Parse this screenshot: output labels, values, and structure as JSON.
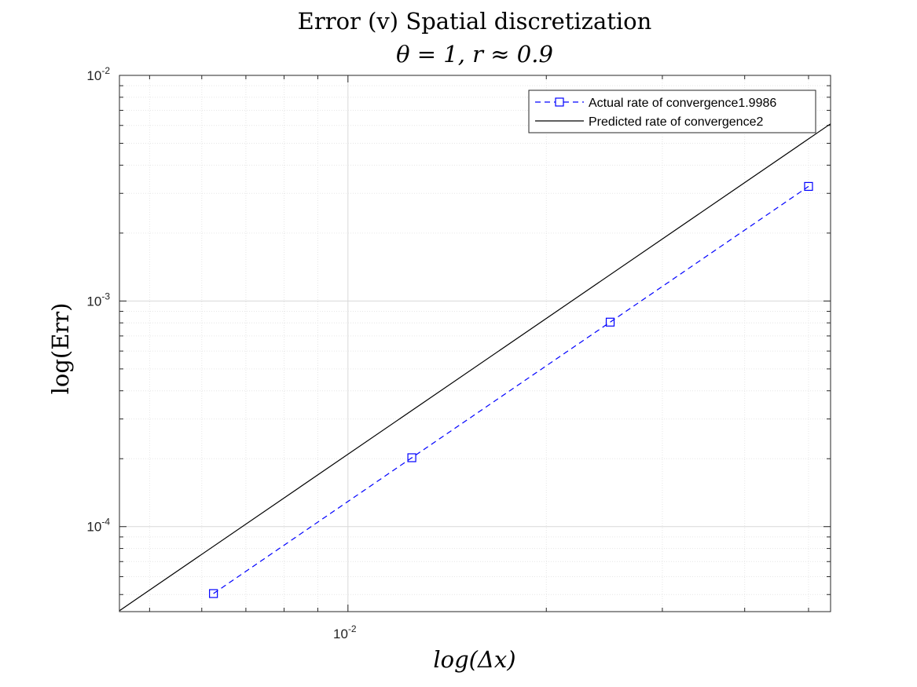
{
  "chart_data": {
    "type": "line",
    "title": "Error (v) Spatial discretization",
    "subtitle": "θ = 1, r ≈ 0.9",
    "xlabel": "log(Δx)",
    "ylabel": "log(Err)",
    "xscale": "log",
    "yscale": "log",
    "xlim": [
      0.0045,
      0.054
    ],
    "ylim": [
      4.2e-05,
      0.01
    ],
    "grid": true,
    "minor_grid": true,
    "legend_position": "top-right",
    "x_ticks": [
      {
        "value": 0.01,
        "base": "10",
        "exp": "-2"
      }
    ],
    "y_ticks": [
      {
        "value": 0.0001,
        "base": "10",
        "exp": "-4"
      },
      {
        "value": 0.001,
        "base": "10",
        "exp": "-3"
      },
      {
        "value": 0.01,
        "base": "10",
        "exp": "-2"
      }
    ],
    "series": [
      {
        "name": "Actual rate of convergence1.9986",
        "color": "#0000ff",
        "style": "dashed",
        "marker": "square",
        "x": [
          0.00625,
          0.0125,
          0.025,
          0.05
        ],
        "y": [
          5.05e-05,
          0.000202,
          0.000806,
          0.00322
        ]
      },
      {
        "name": "Predicted rate of convergence2",
        "color": "#000000",
        "style": "solid",
        "marker": "none",
        "x": [
          0.0045,
          0.054
        ],
        "y": [
          4.24e-05,
          0.0061
        ]
      }
    ]
  }
}
